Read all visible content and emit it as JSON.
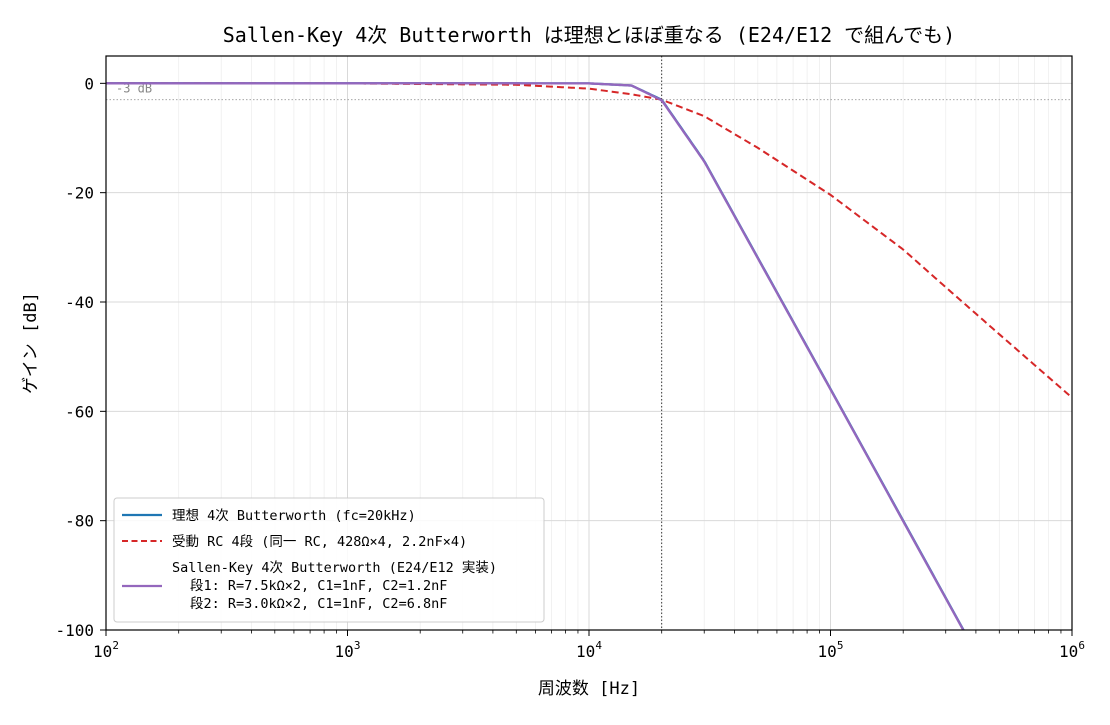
{
  "chart_data": {
    "type": "line",
    "title": "Sallen-Key 4次 Butterworth は理想とほぼ重なる (E24/E12 で組んでも)",
    "xlabel": "周波数 [Hz]",
    "ylabel": "ゲイン [dB]",
    "xscale": "log",
    "xlim": [
      100,
      1000000
    ],
    "ylim": [
      -100,
      5
    ],
    "x_ticks": [
      {
        "base": "10",
        "exp": "2"
      },
      {
        "base": "10",
        "exp": "3"
      },
      {
        "base": "10",
        "exp": "4"
      },
      {
        "base": "10",
        "exp": "5"
      },
      {
        "base": "10",
        "exp": "6"
      }
    ],
    "y_ticks": [
      "0",
      "-20",
      "-40",
      "-60",
      "-80",
      "-100"
    ],
    "y_tick_values": [
      0,
      -20,
      -40,
      -60,
      -80,
      -100
    ],
    "grid": true,
    "legend_position": "lower-left",
    "reference_lines": {
      "hline": {
        "y": -3,
        "label": "-3 dB"
      },
      "vline": {
        "x": 20000
      }
    },
    "x": [
      100,
      1000,
      5000,
      10000,
      15000,
      20000,
      30000,
      50000,
      100000,
      200000,
      300000,
      500000,
      1000000
    ],
    "series": [
      {
        "name": "理想 4次 Butterworth (fc=20kHz)",
        "color": "#1f77b4",
        "dash": "solid",
        "values": [
          0,
          0,
          0,
          -0.007,
          -0.4,
          -3.0,
          -14.2,
          -31.9,
          -55.9,
          -80.0,
          -94.1,
          null,
          null
        ]
      },
      {
        "name": "受動 RC 4段 (同一 RC, 428Ω×4, 2.2nF×4)",
        "color": "#d62728",
        "dash": "dashed",
        "values": [
          0,
          -0.02,
          -0.26,
          -0.97,
          -2.0,
          -3.0,
          -6.0,
          -11.8,
          -20.4,
          -30.4,
          -37.3,
          -45.9,
          -57.5
        ]
      },
      {
        "name": "Sallen-Key 4次 Butterworth (E24/E12 実装)",
        "detail_lines": [
          "段1: R=7.5kΩ×2, C1=1nF, C2=1.2nF",
          "段2: R=3.0kΩ×2, C1=1nF, C2=6.8nF"
        ],
        "color": "#9467bd",
        "dash": "solid",
        "values": [
          0,
          0,
          0,
          -0.01,
          -0.4,
          -3.1,
          -14.3,
          -32.0,
          -56.0,
          -80.1,
          -94.2,
          null,
          null
        ]
      }
    ]
  }
}
